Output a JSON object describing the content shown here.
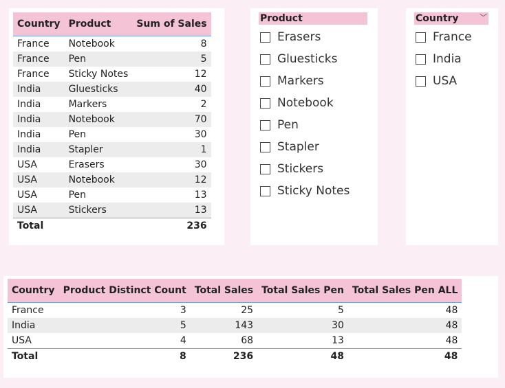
{
  "sales_table": {
    "headers": [
      "Country",
      "Product",
      "Sum of Sales"
    ],
    "rows": [
      [
        "France",
        "Notebook",
        "8"
      ],
      [
        "France",
        "Pen",
        "5"
      ],
      [
        "France",
        "Sticky Notes",
        "12"
      ],
      [
        "India",
        "Gluesticks",
        "40"
      ],
      [
        "India",
        "Markers",
        "2"
      ],
      [
        "India",
        "Notebook",
        "70"
      ],
      [
        "India",
        "Pen",
        "30"
      ],
      [
        "India",
        "Stapler",
        "1"
      ],
      [
        "USA",
        "Erasers",
        "30"
      ],
      [
        "USA",
        "Notebook",
        "12"
      ],
      [
        "USA",
        "Pen",
        "13"
      ],
      [
        "USA",
        "Stickers",
        "13"
      ]
    ],
    "total_label": "Total",
    "total_value": "236"
  },
  "product_slicer": {
    "title": "Product",
    "items": [
      "Erasers",
      "Gluesticks",
      "Markers",
      "Notebook",
      "Pen",
      "Stapler",
      "Stickers",
      "Sticky Notes"
    ]
  },
  "country_slicer": {
    "title": "Country",
    "chevron_icon": "chevron-down-icon",
    "items": [
      "France",
      "India",
      "USA"
    ]
  },
  "summary_table": {
    "headers": [
      "Country",
      "Product Distinct Count",
      "Total Sales",
      "Total Sales Pen",
      "Total Sales Pen ALL"
    ],
    "rows": [
      [
        "France",
        "3",
        "25",
        "5",
        "48"
      ],
      [
        "India",
        "5",
        "143",
        "30",
        "48"
      ],
      [
        "USA",
        "4",
        "68",
        "13",
        "48"
      ]
    ],
    "total": [
      "Total",
      "8",
      "236",
      "48",
      "48"
    ]
  },
  "colors": {
    "page_background": "#fbeef5",
    "header_fill": "#f4c3d6",
    "row_stripe": "#ececec",
    "rule_line": "#6fa6dc"
  }
}
